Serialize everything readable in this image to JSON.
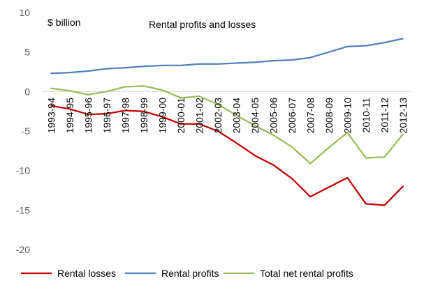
{
  "chart_data": {
    "type": "line",
    "title": "Rental profits and losses",
    "ylabel": "$ billion",
    "xlabel": "",
    "ylim": [
      -20,
      10
    ],
    "yticks": [
      10,
      5,
      0,
      -5,
      -10,
      -15,
      -20
    ],
    "grid": false,
    "legend_position": "bottom",
    "categories": [
      "1993-94",
      "1994-95",
      "1995-96",
      "1996-97",
      "1997-98",
      "1998-99",
      "1999-00",
      "2000-01",
      "2001-02",
      "2002-03",
      "2003-04",
      "2004-05",
      "2005-06",
      "2006-07",
      "2007-08",
      "2008-09",
      "2009-10",
      "2010-11",
      "2011-12",
      "2012-13"
    ],
    "series": [
      {
        "name": "Rental losses",
        "color": "#c00000",
        "values": [
          -1.8,
          -2.2,
          -2.9,
          -2.8,
          -2.4,
          -2.5,
          -3.2,
          -4.1,
          -4.1,
          -5.0,
          -6.5,
          -8.1,
          -9.3,
          -11.0,
          -13.3,
          -12.1,
          -10.9,
          -14.2,
          -14.4,
          -12.0
        ]
      },
      {
        "name": "Rental profits",
        "color": "#4f81bd",
        "values": [
          2.3,
          2.4,
          2.6,
          2.9,
          3.0,
          3.2,
          3.3,
          3.3,
          3.5,
          3.5,
          3.6,
          3.7,
          3.9,
          4.0,
          4.3,
          5.0,
          5.7,
          5.8,
          6.2,
          6.7
        ]
      },
      {
        "name": "Total net rental profits",
        "color": "#9bbb59",
        "values": [
          0.4,
          0.1,
          -0.4,
          0.0,
          0.6,
          0.7,
          0.2,
          -0.8,
          -0.6,
          -1.6,
          -3.0,
          -4.3,
          -5.5,
          -7.0,
          -9.1,
          -7.1,
          -5.2,
          -8.4,
          -8.3,
          -5.4
        ]
      }
    ]
  }
}
